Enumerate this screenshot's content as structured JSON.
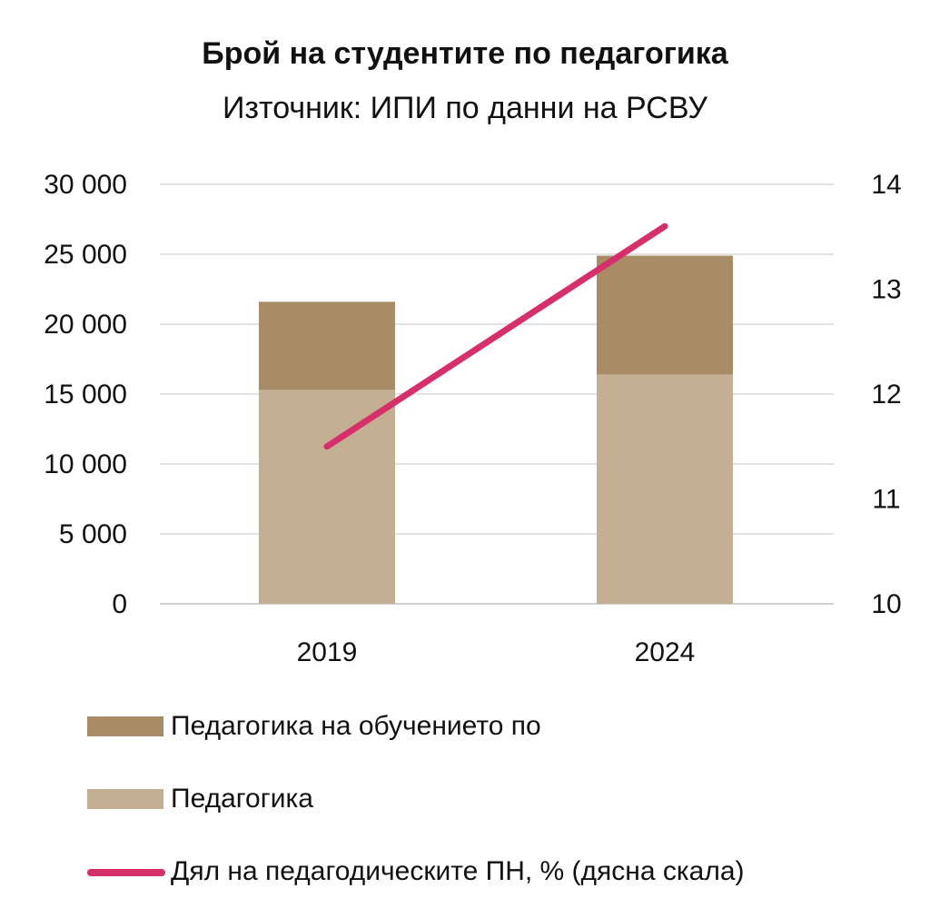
{
  "chart_data": {
    "type": "bar",
    "stacked": true,
    "title": "Брой на студентите по педагогика",
    "subtitle": "Източник: ИПИ по данни на РСВУ",
    "categories": [
      "2019",
      "2024"
    ],
    "y_left": {
      "min": 0,
      "max": 30000,
      "ticks": [
        0,
        5000,
        10000,
        15000,
        20000,
        25000,
        30000
      ],
      "tick_labels": [
        "0",
        "5 000",
        "10 000",
        "15 000",
        "20 000",
        "25 000",
        "30 000"
      ]
    },
    "y_right": {
      "min": 10,
      "max": 14,
      "ticks": [
        10,
        11,
        12,
        13,
        14
      ],
      "tick_labels": [
        "10",
        "11",
        "12",
        "13",
        "14"
      ]
    },
    "grid": true,
    "legend_position": "bottom",
    "series": [
      {
        "name": "Педагогика",
        "type": "bar",
        "axis": "left",
        "color": "#c4af93",
        "values": [
          15300,
          16400
        ]
      },
      {
        "name": "Педагогика на обучението по",
        "type": "bar",
        "axis": "left",
        "color": "#a88c66",
        "values": [
          6300,
          8500
        ]
      },
      {
        "name": "Дял на педагодическите ПН, % (дясна скала)",
        "type": "line",
        "axis": "right",
        "color": "#d62f6b",
        "values": [
          11.5,
          13.6
        ]
      }
    ],
    "legend_order": [
      1,
      0,
      2
    ]
  }
}
